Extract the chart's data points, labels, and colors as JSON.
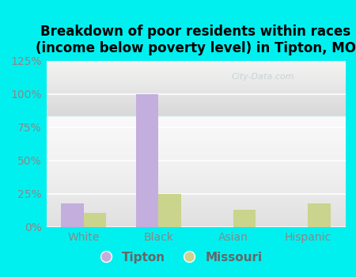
{
  "title": "Breakdown of poor residents within races\n(income below poverty level) in Tipton, MO",
  "categories": [
    "White",
    "Black",
    "Asian",
    "Hispanic"
  ],
  "tipton_values": [
    0.18,
    1.0,
    0.0,
    0.0
  ],
  "missouri_values": [
    0.11,
    0.25,
    0.13,
    0.18
  ],
  "tipton_color": "#c4aedd",
  "missouri_color": "#cad48c",
  "background_color": "#00f0f0",
  "plot_bg_top": "#f4faf0",
  "plot_bg_bottom": "#d8f0e0",
  "ylim": [
    0,
    1.25
  ],
  "yticks": [
    0.0,
    0.25,
    0.5,
    0.75,
    1.0,
    1.25
  ],
  "ytick_labels": [
    "0%",
    "25%",
    "50%",
    "75%",
    "100%",
    "125%"
  ],
  "bar_width": 0.3,
  "title_fontsize": 12,
  "tick_fontsize": 10,
  "legend_fontsize": 11,
  "grid_color": "#ffffff",
  "tick_color": "#888888",
  "xtick_color": "#888888",
  "watermark_color": "#c8d4d4",
  "watermark_text": "City-Data.com"
}
